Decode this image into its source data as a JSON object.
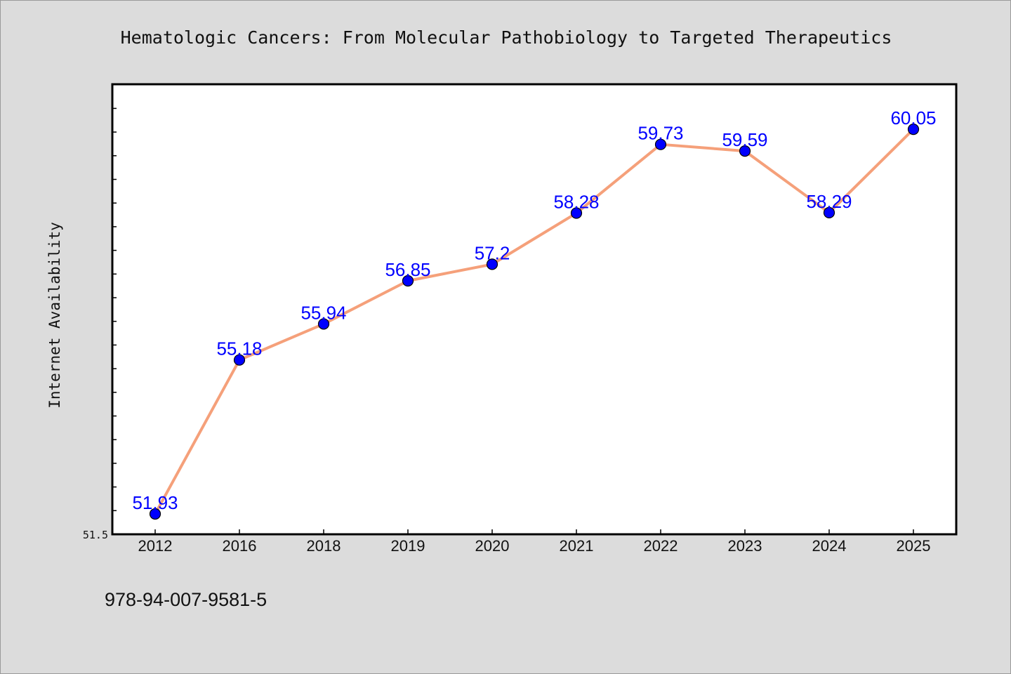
{
  "chart_data": {
    "type": "line",
    "title": "Hematologic Cancers: From Molecular Pathobiology to Targeted Therapeutics",
    "xlabel": "",
    "ylabel": "Internet Availability",
    "categories": [
      "2012",
      "2016",
      "2018",
      "2019",
      "2020",
      "2021",
      "2022",
      "2023",
      "2024",
      "2025"
    ],
    "series": [
      {
        "values": [
          51.93,
          55.18,
          55.94,
          56.85,
          57.2,
          58.28,
          59.73,
          59.59,
          58.29,
          60.05
        ],
        "labels": [
          "51.93",
          "55.18",
          "55.94",
          "56.85",
          "57.2",
          "58.28",
          "59.73",
          "59.59",
          "58.29",
          "60.05"
        ]
      }
    ],
    "ylim": [
      51.5,
      61.0
    ],
    "y_tick_labels": [
      "51.5"
    ],
    "grid": false,
    "legend": "none",
    "line_color": "#f5a07a",
    "marker_color": "#0000ff",
    "label_color": "#0000ff",
    "plot_background": "#ffffff",
    "figure_background": "#dcdcdc"
  },
  "caption": "978-94-007-9581-5"
}
